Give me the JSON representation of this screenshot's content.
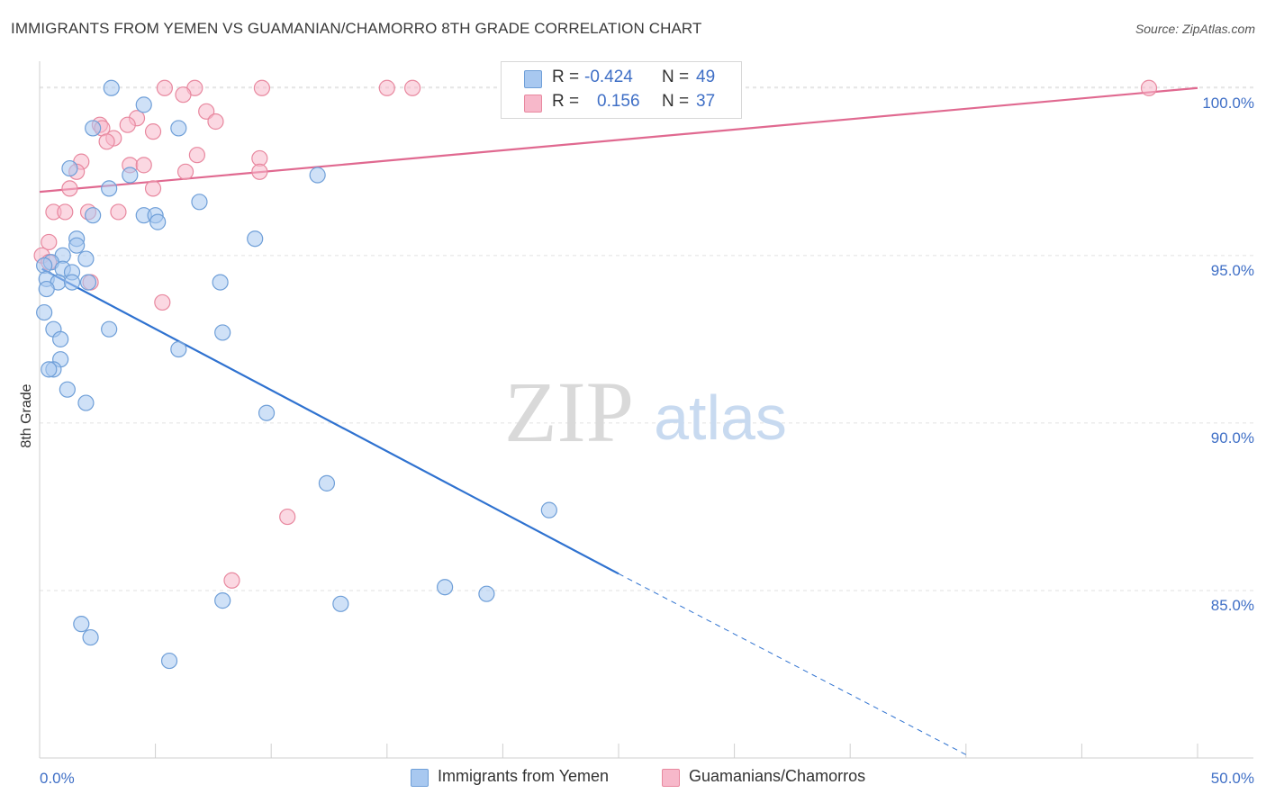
{
  "header": {
    "title": "IMMIGRANTS FROM YEMEN VS GUAMANIAN/CHAMORRO 8TH GRADE CORRELATION CHART",
    "source": "Source: ZipAtlas.com"
  },
  "watermark": {
    "zip": "ZIP",
    "atlas": "atlas"
  },
  "legend": {
    "rows": [
      {
        "r_label": "R =",
        "r_value": "-0.424",
        "n_label": "N =",
        "n_value": "49",
        "color": "#a8c8f0",
        "border": "#6f9fd8"
      },
      {
        "r_label": "R =",
        "r_value": "0.156",
        "n_label": "N =",
        "n_value": "37",
        "color": "#f7b8ca",
        "border": "#e8889f"
      }
    ]
  },
  "bottom_legend": {
    "items": [
      {
        "label": "Immigrants from Yemen",
        "color": "#a8c8f0",
        "border": "#6f9fd8"
      },
      {
        "label": "Guamanians/Chamorros",
        "color": "#f7b8ca",
        "border": "#e8889f"
      }
    ]
  },
  "chart_data": {
    "type": "scatter",
    "title": "IMMIGRANTS FROM YEMEN VS GUAMANIAN/CHAMORRO 8TH GRADE CORRELATION CHART",
    "xlabel": "",
    "ylabel": "8th Grade",
    "xlim": [
      0,
      50
    ],
    "ylim": [
      80,
      100.8
    ],
    "x_tick_labels": [
      "0.0%",
      "50.0%"
    ],
    "y_ticks": [
      85,
      90,
      95,
      100
    ],
    "y_tick_labels": [
      "85.0%",
      "90.0%",
      "95.0%",
      "100.0%"
    ],
    "grid": true,
    "legend_placement": "top-center",
    "series": [
      {
        "name": "Immigrants from Yemen",
        "color": "#6f9fd8",
        "fill": "#a8c8f0",
        "trend_color": "#2f72d0",
        "trend": {
          "x0": 0.1,
          "y0": 94.6,
          "x1": 25,
          "y1": 85.5,
          "dashed_to_x": 40,
          "dashed_to_y": 80.1
        },
        "points": [
          [
            3.1,
            100.0
          ],
          [
            4.5,
            99.5
          ],
          [
            2.3,
            98.8
          ],
          [
            6.0,
            98.8
          ],
          [
            1.3,
            97.6
          ],
          [
            3.9,
            97.4
          ],
          [
            12.0,
            97.4
          ],
          [
            3.0,
            97.0
          ],
          [
            6.9,
            96.6
          ],
          [
            2.3,
            96.2
          ],
          [
            4.5,
            96.2
          ],
          [
            5.0,
            96.2
          ],
          [
            5.1,
            96.0
          ],
          [
            1.6,
            95.5
          ],
          [
            9.3,
            95.5
          ],
          [
            1.6,
            95.3
          ],
          [
            1.0,
            95.0
          ],
          [
            2.0,
            94.9
          ],
          [
            0.5,
            94.8
          ],
          [
            1.0,
            94.6
          ],
          [
            1.4,
            94.5
          ],
          [
            0.2,
            94.7
          ],
          [
            0.3,
            94.3
          ],
          [
            0.8,
            94.2
          ],
          [
            1.4,
            94.2
          ],
          [
            2.1,
            94.2
          ],
          [
            7.8,
            94.2
          ],
          [
            0.3,
            94.0
          ],
          [
            0.2,
            93.3
          ],
          [
            0.6,
            92.8
          ],
          [
            3.0,
            92.8
          ],
          [
            7.9,
            92.7
          ],
          [
            0.9,
            92.5
          ],
          [
            6.0,
            92.2
          ],
          [
            0.9,
            91.9
          ],
          [
            0.6,
            91.6
          ],
          [
            0.4,
            91.6
          ],
          [
            1.2,
            91.0
          ],
          [
            2.0,
            90.6
          ],
          [
            9.8,
            90.3
          ],
          [
            12.4,
            88.2
          ],
          [
            22.0,
            87.4
          ],
          [
            17.5,
            85.1
          ],
          [
            19.3,
            84.9
          ],
          [
            7.9,
            84.7
          ],
          [
            13.0,
            84.6
          ],
          [
            1.8,
            84.0
          ],
          [
            2.2,
            83.6
          ],
          [
            5.6,
            82.9
          ]
        ]
      },
      {
        "name": "Guamanians/Chamorros",
        "color": "#e8889f",
        "fill": "#f7b8ca",
        "trend_color": "#e06990",
        "trend": {
          "x0": 0,
          "y0": 96.9,
          "x1": 50,
          "y1": 100.0
        },
        "points": [
          [
            5.4,
            100.0
          ],
          [
            6.7,
            100.0
          ],
          [
            9.6,
            100.0
          ],
          [
            15.0,
            100.0
          ],
          [
            16.1,
            100.0
          ],
          [
            47.9,
            100.0
          ],
          [
            6.2,
            99.8
          ],
          [
            7.2,
            99.3
          ],
          [
            4.2,
            99.1
          ],
          [
            7.6,
            99.0
          ],
          [
            2.6,
            98.9
          ],
          [
            3.8,
            98.9
          ],
          [
            2.7,
            98.8
          ],
          [
            4.9,
            98.7
          ],
          [
            3.2,
            98.5
          ],
          [
            2.9,
            98.4
          ],
          [
            6.8,
            98.0
          ],
          [
            9.5,
            97.9
          ],
          [
            1.8,
            97.8
          ],
          [
            3.9,
            97.7
          ],
          [
            4.5,
            97.7
          ],
          [
            1.6,
            97.5
          ],
          [
            6.3,
            97.5
          ],
          [
            9.5,
            97.5
          ],
          [
            1.3,
            97.0
          ],
          [
            4.9,
            97.0
          ],
          [
            0.6,
            96.3
          ],
          [
            1.1,
            96.3
          ],
          [
            2.1,
            96.3
          ],
          [
            3.4,
            96.3
          ],
          [
            0.4,
            95.4
          ],
          [
            0.1,
            95.0
          ],
          [
            0.4,
            94.8
          ],
          [
            2.2,
            94.2
          ],
          [
            5.3,
            93.6
          ],
          [
            10.7,
            87.2
          ],
          [
            8.3,
            85.3
          ]
        ]
      }
    ]
  }
}
